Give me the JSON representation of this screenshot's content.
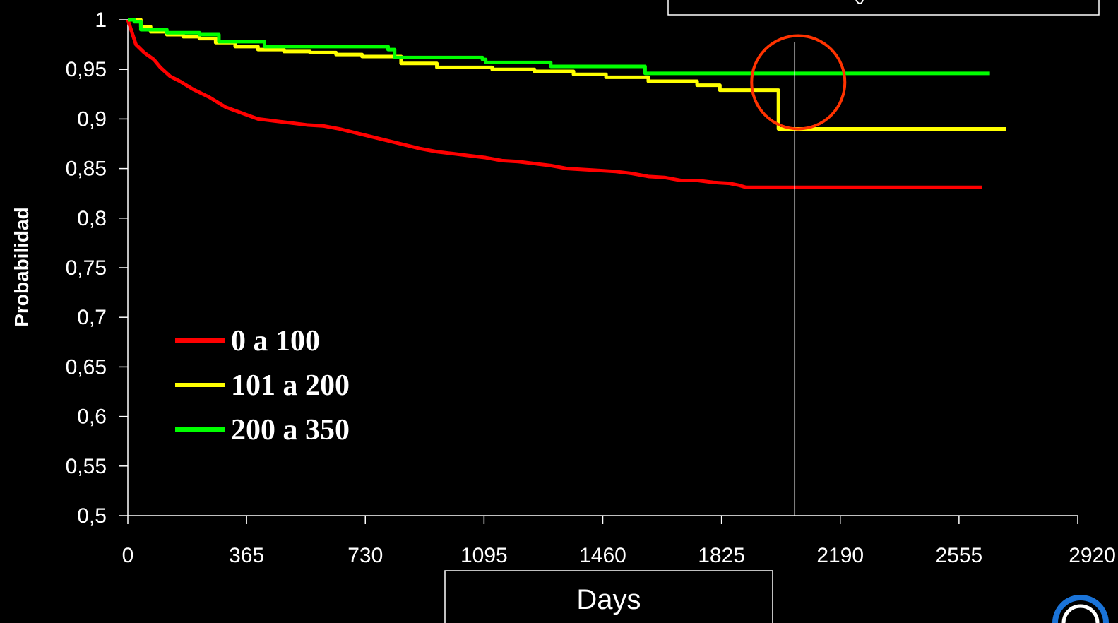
{
  "chart_data": {
    "type": "line",
    "title": "",
    "xlabel": "Days",
    "ylabel": "Probabilidad",
    "xlim": [
      0,
      2920
    ],
    "ylim": [
      0.5,
      1
    ],
    "x_ticks": [
      0,
      365,
      730,
      1095,
      1460,
      1825,
      2190,
      2555,
      2920
    ],
    "x_tick_labels": [
      "0",
      "365",
      "730",
      "1095",
      "1460",
      "1825",
      "2190",
      "2555",
      "2920"
    ],
    "y_ticks": [
      0.5,
      0.55,
      0.6,
      0.65,
      0.7,
      0.75,
      0.8,
      0.85,
      0.9,
      0.95,
      1
    ],
    "y_tick_labels": [
      "0,5",
      "0,55",
      "0,6",
      "0,65",
      "0,7",
      "0,75",
      "0,8",
      "0,85",
      "0,9",
      "0,95",
      "1"
    ],
    "grid": false,
    "legend_position": "left",
    "reference_line_x": 2050,
    "highlight_circle_center": [
      2050,
      0.937
    ],
    "series": [
      {
        "name": "0 a 100",
        "color": "#ff0000",
        "step": false,
        "x": [
          0,
          10,
          25,
          50,
          80,
          100,
          130,
          160,
          200,
          250,
          300,
          350,
          400,
          450,
          500,
          550,
          600,
          650,
          700,
          750,
          800,
          850,
          900,
          950,
          1000,
          1050,
          1100,
          1150,
          1200,
          1250,
          1300,
          1350,
          1400,
          1450,
          1500,
          1550,
          1600,
          1650,
          1700,
          1750,
          1800,
          1850,
          1880,
          1900,
          2000,
          2100,
          2200,
          2300,
          2400,
          2500,
          2600,
          2625
        ],
        "y": [
          1.0,
          0.99,
          0.975,
          0.967,
          0.96,
          0.952,
          0.943,
          0.938,
          0.93,
          0.922,
          0.912,
          0.906,
          0.9,
          0.898,
          0.896,
          0.894,
          0.893,
          0.89,
          0.886,
          0.882,
          0.878,
          0.874,
          0.87,
          0.867,
          0.865,
          0.863,
          0.861,
          0.858,
          0.857,
          0.855,
          0.853,
          0.85,
          0.849,
          0.848,
          0.847,
          0.845,
          0.842,
          0.841,
          0.838,
          0.838,
          0.836,
          0.835,
          0.833,
          0.831,
          0.831,
          0.831,
          0.831,
          0.831,
          0.831,
          0.831,
          0.831,
          0.831
        ]
      },
      {
        "name": "101 a 200",
        "color": "#ffff00",
        "step": true,
        "x": [
          0,
          40,
          70,
          120,
          170,
          220,
          270,
          330,
          400,
          480,
          560,
          640,
          720,
          840,
          950,
          1120,
          1250,
          1370,
          1470,
          1600,
          1750,
          1820,
          1950,
          2000,
          2700
        ],
        "y": [
          1.0,
          0.993,
          0.988,
          0.985,
          0.983,
          0.981,
          0.977,
          0.973,
          0.97,
          0.968,
          0.967,
          0.965,
          0.963,
          0.956,
          0.952,
          0.95,
          0.948,
          0.945,
          0.942,
          0.938,
          0.934,
          0.929,
          0.929,
          0.89,
          0.89
        ]
      },
      {
        "name": "200 a 350",
        "color": "#00ff00",
        "step": true,
        "x": [
          0,
          20,
          40,
          120,
          220,
          280,
          420,
          800,
          820,
          1090,
          1100,
          1300,
          1580,
          1590,
          2650
        ],
        "y": [
          1.0,
          0.998,
          0.99,
          0.987,
          0.985,
          0.978,
          0.973,
          0.97,
          0.962,
          0.96,
          0.957,
          0.953,
          0.953,
          0.946,
          0.946
        ]
      }
    ]
  }
}
